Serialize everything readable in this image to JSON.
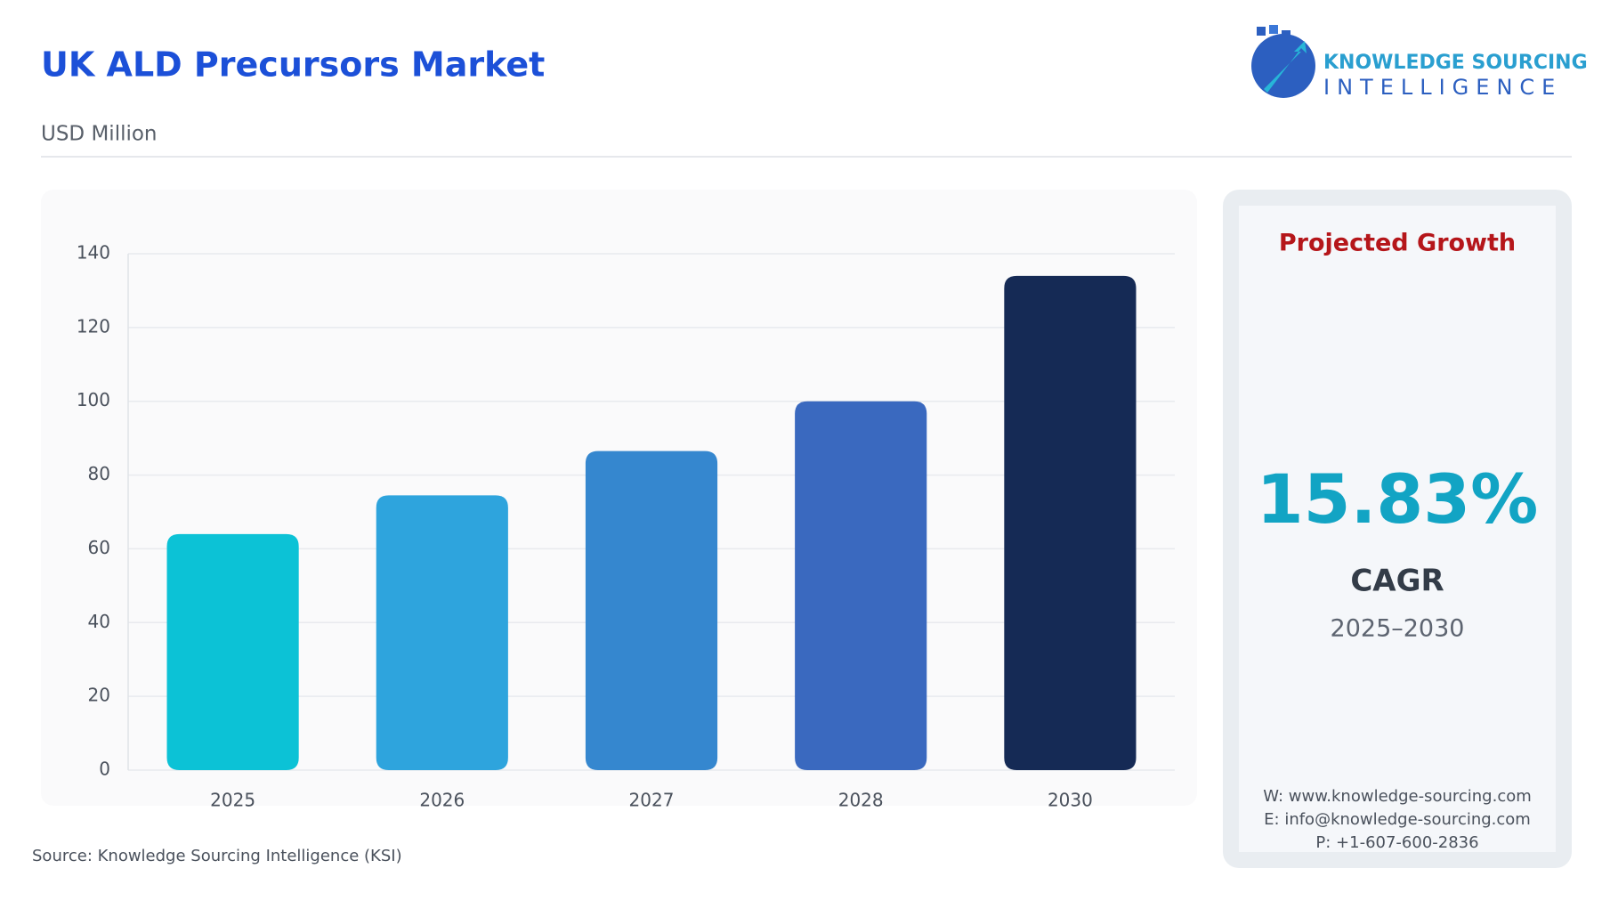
{
  "header": {
    "logo_line1": "KNOWLEDGE SOURCING",
    "logo_line2": "INTELLIGENCE"
  },
  "chart_data": {
    "type": "bar",
    "title": "UK ALD Precursors Market",
    "subtitle": "USD Million",
    "categories": [
      "2025",
      "2026",
      "2027",
      "2028",
      "2030"
    ],
    "values": [
      64,
      74.5,
      86.5,
      100,
      134
    ],
    "colors": [
      "#0cc2d6",
      "#2ea4dd",
      "#3587cf",
      "#3a69bf",
      "#152a55"
    ],
    "ylim": [
      0,
      140
    ],
    "yticks": [
      0,
      20,
      40,
      60,
      80,
      100,
      120,
      140
    ],
    "grid": true
  },
  "panel": {
    "heading": "Projected Growth",
    "cagr_value": "15.83%",
    "cagr_label": "CAGR",
    "period": "2025–2030",
    "contacts": [
      "W: www.knowledge-sourcing.com",
      "E: info@knowledge-sourcing.com",
      "P: +1-607-600-2836"
    ]
  },
  "footer": {
    "source": "Source: Knowledge Sourcing Intelligence (KSI)"
  }
}
